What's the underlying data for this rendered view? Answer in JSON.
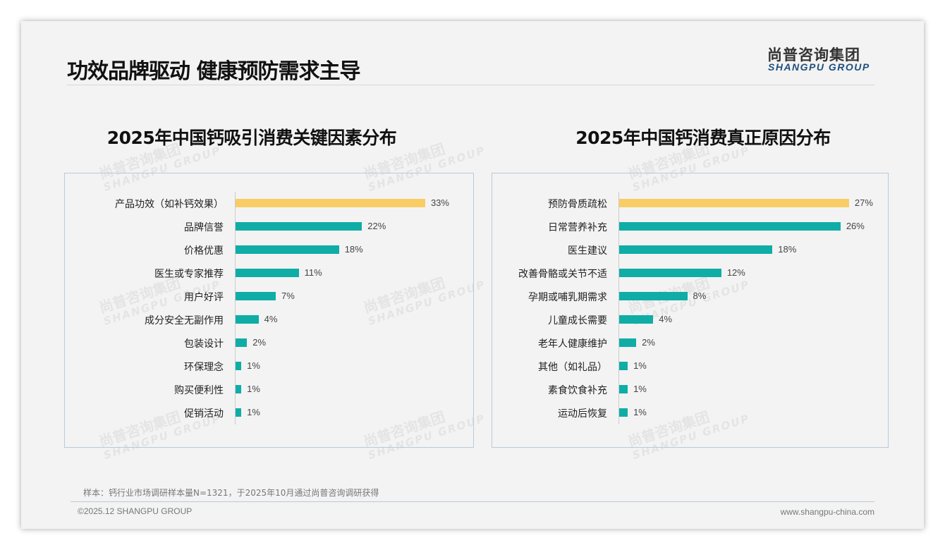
{
  "header": {
    "title": "功效品牌驱动 健康预防需求主导",
    "logo_cn": "尚普咨询集团",
    "logo_en": "SHANGPU GROUP"
  },
  "colors": {
    "highlight": "#f9cd66",
    "bar": "#0fada6"
  },
  "chart_data": [
    {
      "type": "bar",
      "orientation": "horizontal",
      "title": "2025年中国钙吸引消费关键因素分布",
      "unit": "%",
      "categories": [
        "产品功效（如补钙效果）",
        "品牌信誉",
        "价格优惠",
        "医生或专家推荐",
        "用户好评",
        "成分安全无副作用",
        "包装设计",
        "环保理念",
        "购买便利性",
        "促销活动"
      ],
      "values": [
        33,
        22,
        18,
        11,
        7,
        4,
        2,
        1,
        1,
        1
      ],
      "highlight_index": 0
    },
    {
      "type": "bar",
      "orientation": "horizontal",
      "title": "2025年中国钙消费真正原因分布",
      "unit": "%",
      "categories": [
        "预防骨质疏松",
        "日常营养补充",
        "医生建议",
        "改善骨骼或关节不适",
        "孕期或哺乳期需求",
        "儿童成长需要",
        "老年人健康维护",
        "其他（如礼品）",
        "素食饮食补充",
        "运动后恢复"
      ],
      "values": [
        27,
        26,
        18,
        12,
        8,
        4,
        2,
        1,
        1,
        1
      ],
      "highlight_index": 0
    }
  ],
  "footer": {
    "note": "样本：钙行业市场调研样本量N=1321，于2025年10月通过尚普咨询调研获得",
    "copyright": "©2025.12 SHANGPU GROUP",
    "url": "www.shangpu-china.com"
  }
}
